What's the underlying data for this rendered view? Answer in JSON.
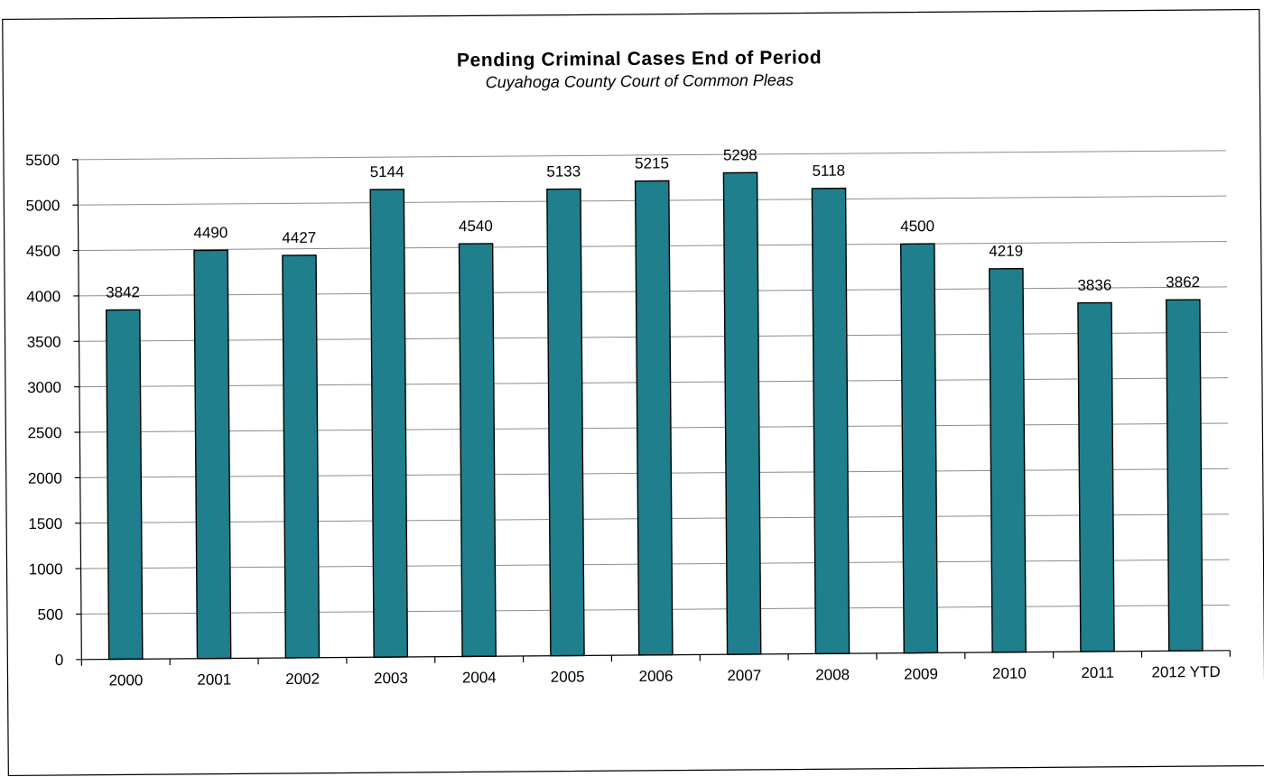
{
  "chart_data": {
    "type": "bar",
    "title": "Pending Criminal Cases End of Period",
    "subtitle": "Cuyahoga County Court of Common Pleas",
    "xlabel": "",
    "ylabel": "",
    "categories": [
      "2000",
      "2001",
      "2002",
      "2003",
      "2004",
      "2005",
      "2006",
      "2007",
      "2008",
      "2009",
      "2010",
      "2011",
      "2012 YTD"
    ],
    "values": [
      3842,
      4490,
      4427,
      5144,
      4540,
      5133,
      5215,
      5298,
      5118,
      4500,
      4219,
      3836,
      3862
    ],
    "ylim": [
      0,
      5500
    ],
    "yticks": [
      0,
      500,
      1000,
      1500,
      2000,
      2500,
      3000,
      3500,
      4000,
      4500,
      5000,
      5500
    ],
    "grid": true,
    "legend": "none",
    "bar_color": "#1f7f8c",
    "data_labels": true
  }
}
